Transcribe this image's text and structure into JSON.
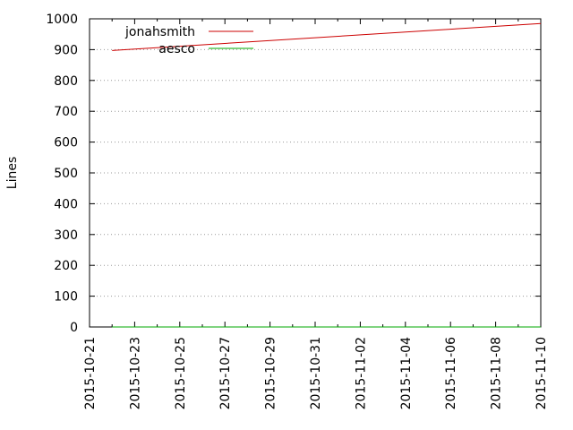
{
  "chart_data": {
    "type": "line",
    "title": "",
    "xlabel": "",
    "ylabel": "Lines",
    "x_type": "date",
    "xlim": [
      "2015-10-21",
      "2015-11-10"
    ],
    "ylim": [
      0,
      1000
    ],
    "x_ticks": [
      "2015-10-21",
      "2015-10-23",
      "2015-10-25",
      "2015-10-27",
      "2015-10-29",
      "2015-10-31",
      "2015-11-02",
      "2015-11-04",
      "2015-11-06",
      "2015-11-08",
      "2015-11-10"
    ],
    "y_ticks": [
      0,
      100,
      200,
      300,
      400,
      500,
      600,
      700,
      800,
      900,
      1000
    ],
    "grid": true,
    "legend_position": "top-left",
    "series": [
      {
        "name": "jonahsmith",
        "color": "#cc0000",
        "points": [
          {
            "x": "2015-10-22",
            "y": 897
          },
          {
            "x": "2015-11-10",
            "y": 985
          }
        ]
      },
      {
        "name": "aesco",
        "color": "#00aa00",
        "points": [
          {
            "x": "2015-10-22",
            "y": 0
          },
          {
            "x": "2015-11-10",
            "y": 0
          }
        ]
      }
    ]
  }
}
